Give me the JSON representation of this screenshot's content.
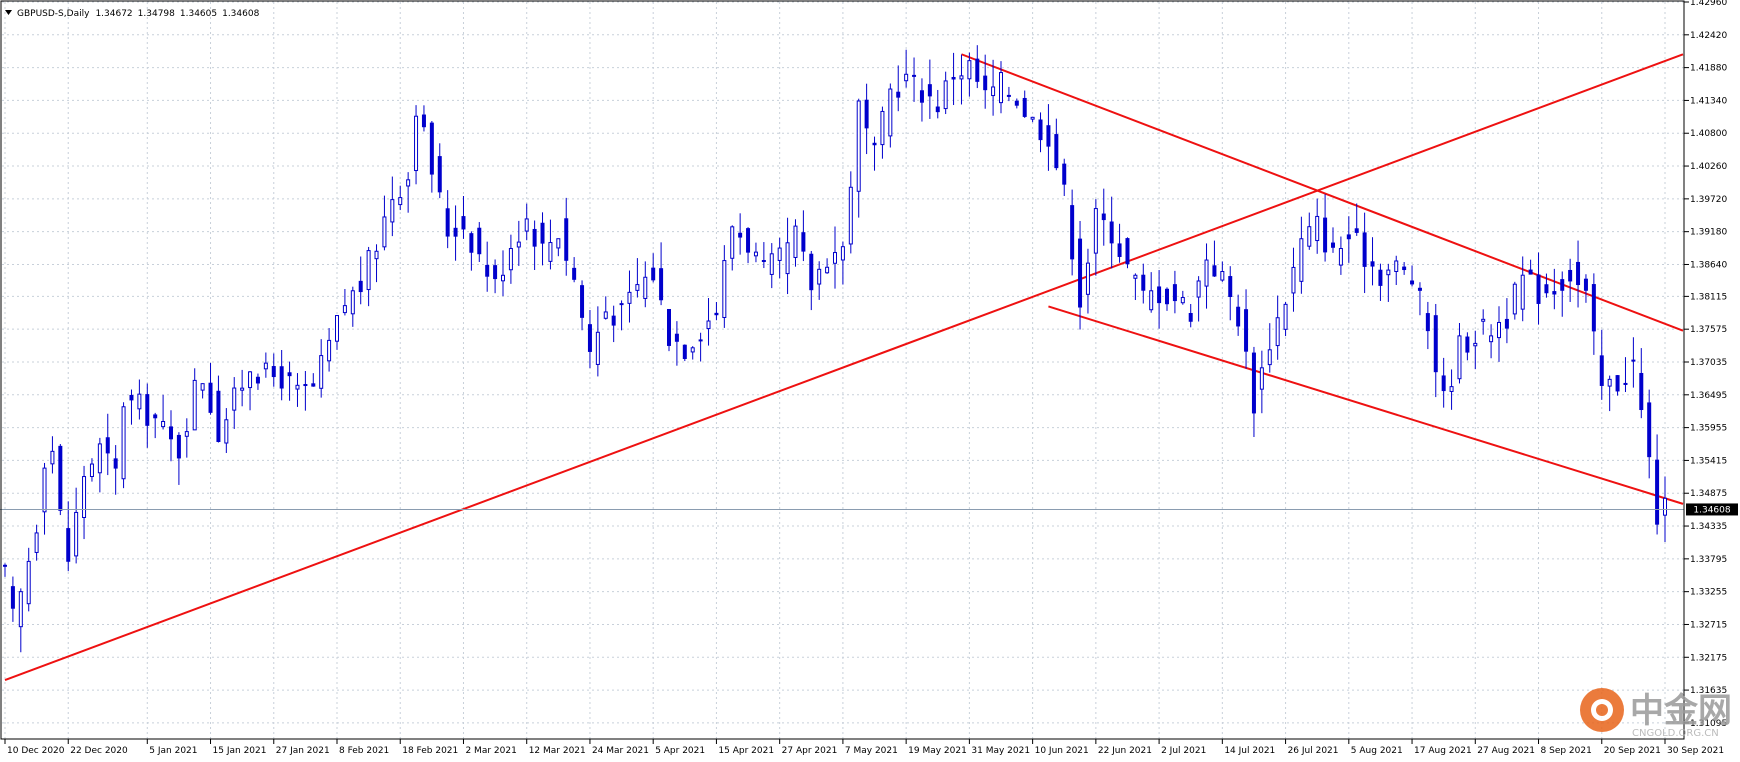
{
  "header": {
    "symbol": "GBPUSD-S",
    "timeframe": "Daily",
    "ohlc": [
      "1.34672",
      "1.34798",
      "1.34605",
      "1.34608"
    ]
  },
  "current_price_label": "1.34608",
  "watermark": {
    "name": "中金网",
    "site": "CNGOLD.ORG.CN"
  },
  "colors": {
    "candle": "#0000cc",
    "trendline": "#ee1111",
    "grid": "#c8d0da",
    "price_line": "#8a9cb0",
    "price_label_bg": "#000000"
  },
  "chart_data": {
    "type": "candlestick",
    "title": "GBPUSD-S, Daily",
    "ylim": [
      1.3083,
      1.4296
    ],
    "y_ticks": [
      "1.42960",
      "1.42420",
      "1.41880",
      "1.41340",
      "1.40800",
      "1.40260",
      "1.39720",
      "1.39180",
      "1.38640",
      "1.38115",
      "1.37575",
      "1.37035",
      "1.36495",
      "1.35955",
      "1.35415",
      "1.34875",
      "1.34335",
      "1.33795",
      "1.33255",
      "1.32715",
      "1.32175",
      "1.31635",
      "1.31095"
    ],
    "x_ticks": [
      "10 Dec 2020",
      "22 Dec 2020",
      "5 Jan 2021",
      "15 Jan 2021",
      "27 Jan 2021",
      "8 Feb 2021",
      "18 Feb 2021",
      "2 Mar 2021",
      "12 Mar 2021",
      "24 Mar 2021",
      "5 Apr 2021",
      "15 Apr 2021",
      "27 Apr 2021",
      "7 May 2021",
      "19 May 2021",
      "31 May 2021",
      "10 Jun 2021",
      "22 Jun 2021",
      "2 Jul 2021",
      "14 Jul 2021",
      "26 Jul 2021",
      "5 Aug 2021",
      "17 Aug 2021",
      "27 Aug 2021",
      "8 Sep 2021",
      "20 Sep 2021",
      "30 Sep 2021"
    ],
    "current_price": 1.34608,
    "trendlines": [
      {
        "from": [
          "10 Dec 2020",
          1.318
        ],
        "to": [
          "30 Sep 2021",
          1.421
        ]
      },
      {
        "from": [
          "28 May 2021",
          1.421
        ],
        "to": [
          "30 Sep 2021",
          1.3755
        ]
      },
      {
        "from": [
          "14 Jun 2021",
          1.3795
        ],
        "to": [
          "30 Sep 2021",
          1.347
        ]
      }
    ],
    "anchors": [
      [
        "10 Dec 2020",
        1.335
      ],
      [
        "11 Dec 2020",
        1.328
      ],
      [
        "14 Dec 2020",
        1.332
      ],
      [
        "16 Dec 2020",
        1.344
      ],
      [
        "17 Dec 2020",
        1.355
      ],
      [
        "18 Dec 2020",
        1.356
      ],
      [
        "21 Dec 2020",
        1.345
      ],
      [
        "22 Dec 2020",
        1.338
      ],
      [
        "24 Dec 2020",
        1.352
      ],
      [
        "28 Dec 2020",
        1.356
      ],
      [
        "30 Dec 2020",
        1.352
      ],
      [
        "31 Dec 2020",
        1.364
      ],
      [
        "4 Jan 2021",
        1.363
      ],
      [
        "6 Jan 2021",
        1.361
      ],
      [
        "8 Jan 2021",
        1.357
      ],
      [
        "11 Jan 2021",
        1.356
      ],
      [
        "13 Jan 2021",
        1.366
      ],
      [
        "14 Jan 2021",
        1.368
      ],
      [
        "18 Jan 2021",
        1.359
      ],
      [
        "20 Jan 2021",
        1.364
      ],
      [
        "22 Jan 2021",
        1.37
      ],
      [
        "26 Jan 2021",
        1.368
      ],
      [
        "28 Jan 2021",
        1.368
      ],
      [
        "1 Feb 2021",
        1.365
      ],
      [
        "3 Feb 2021",
        1.366
      ],
      [
        "5 Feb 2021",
        1.373
      ],
      [
        "9 Feb 2021",
        1.38
      ],
      [
        "11 Feb 2021",
        1.383
      ],
      [
        "15 Feb 2021",
        1.39
      ],
      [
        "17 Feb 2021",
        1.398
      ],
      [
        "19 Feb 2021",
        1.401
      ],
      [
        "22 Feb 2021",
        1.413
      ],
      [
        "24 Feb 2021",
        1.402
      ],
      [
        "26 Feb 2021",
        1.392
      ],
      [
        "2 Mar 2021",
        1.393
      ],
      [
        "4 Mar 2021",
        1.388
      ],
      [
        "8 Mar 2021",
        1.383
      ],
      [
        "10 Mar 2021",
        1.39
      ],
      [
        "12 Mar 2021",
        1.394
      ],
      [
        "16 Mar 2021",
        1.389
      ],
      [
        "18 Mar 2021",
        1.392
      ],
      [
        "22 Mar 2021",
        1.384
      ],
      [
        "24 Mar 2021",
        1.372
      ],
      [
        "26 Mar 2021",
        1.379
      ],
      [
        "30 Mar 2021",
        1.378
      ],
      [
        "1 Apr 2021",
        1.383
      ],
      [
        "5 Apr 2021",
        1.385
      ],
      [
        "7 Apr 2021",
        1.375
      ],
      [
        "9 Apr 2021",
        1.373
      ],
      [
        "13 Apr 2021",
        1.376
      ],
      [
        "15 Apr 2021",
        1.379
      ],
      [
        "19 Apr 2021",
        1.393
      ],
      [
        "21 Apr 2021",
        1.39
      ],
      [
        "23 Apr 2021",
        1.385
      ],
      [
        "27 Apr 2021",
        1.387
      ],
      [
        "29 Apr 2021",
        1.391
      ],
      [
        "3 May 2021",
        1.383
      ],
      [
        "5 May 2021",
        1.388
      ],
      [
        "7 May 2021",
        1.389
      ],
      [
        "11 May 2021",
        1.412
      ],
      [
        "13 May 2021",
        1.404
      ],
      [
        "17 May 2021",
        1.415
      ],
      [
        "19 May 2021",
        1.417
      ],
      [
        "21 May 2021",
        1.415
      ],
      [
        "25 May 2021",
        1.413
      ],
      [
        "27 May 2021",
        1.418
      ],
      [
        "31 May 2021",
        1.419
      ],
      [
        "2 Jun 2021",
        1.414
      ],
      [
        "4 Jun 2021",
        1.416
      ],
      [
        "8 Jun 2021",
        1.414
      ],
      [
        "10 Jun 2021",
        1.41
      ],
      [
        "14 Jun 2021",
        1.408
      ],
      [
        "16 Jun 2021",
        1.398
      ],
      [
        "18 Jun 2021",
        1.381
      ],
      [
        "22 Jun 2021",
        1.394
      ],
      [
        "24 Jun 2021",
        1.392
      ],
      [
        "28 Jun 2021",
        1.386
      ],
      [
        "30 Jun 2021",
        1.381
      ],
      [
        "2 Jul 2021",
        1.382
      ],
      [
        "6 Jul 2021",
        1.381
      ],
      [
        "8 Jul 2021",
        1.379
      ],
      [
        "12 Jul 2021",
        1.388
      ],
      [
        "14 Jul 2021",
        1.384
      ],
      [
        "16 Jul 2021",
        1.378
      ],
      [
        "20 Jul 2021",
        1.364
      ],
      [
        "22 Jul 2021",
        1.374
      ],
      [
        "26 Jul 2021",
        1.381
      ],
      [
        "28 Jul 2021",
        1.39
      ],
      [
        "30 Jul 2021",
        1.393
      ],
      [
        "3 Aug 2021",
        1.388
      ],
      [
        "5 Aug 2021",
        1.391
      ],
      [
        "9 Aug 2021",
        1.388
      ],
      [
        "11 Aug 2021",
        1.385
      ],
      [
        "13 Aug 2021",
        1.386
      ],
      [
        "17 Aug 2021",
        1.384
      ],
      [
        "19 Aug 2021",
        1.376
      ],
      [
        "23 Aug 2021",
        1.364
      ],
      [
        "25 Aug 2021",
        1.373
      ],
      [
        "27 Aug 2021",
        1.375
      ],
      [
        "31 Aug 2021",
        1.376
      ],
      [
        "2 Sep 2021",
        1.378
      ],
      [
        "6 Sep 2021",
        1.384
      ],
      [
        "8 Sep 2021",
        1.382
      ],
      [
        "10 Sep 2021",
        1.383
      ],
      [
        "14 Sep 2021",
        1.385
      ],
      [
        "16 Sep 2021",
        1.381
      ],
      [
        "20 Sep 2021",
        1.366
      ],
      [
        "22 Sep 2021",
        1.367
      ],
      [
        "24 Sep 2021",
        1.37
      ],
      [
        "28 Sep 2021",
        1.354
      ],
      [
        "29 Sep 2021",
        1.345
      ],
      [
        "30 Sep 2021",
        1.3461
      ]
    ]
  }
}
